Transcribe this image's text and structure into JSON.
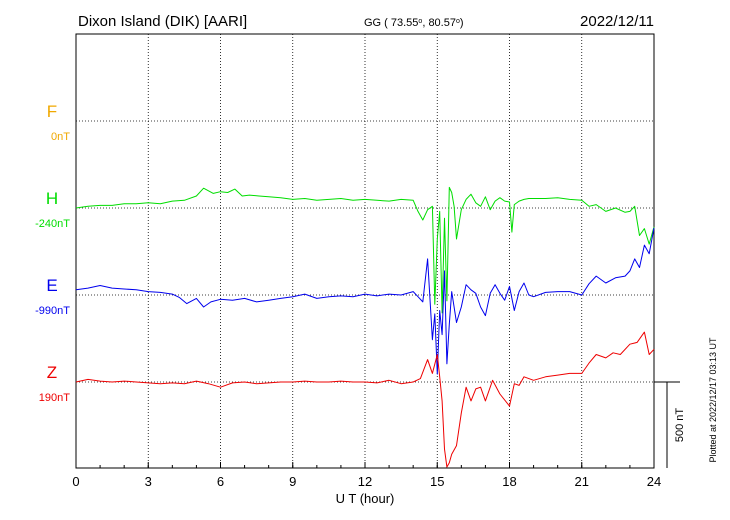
{
  "header": {
    "station": "Dixon Island (DIK)  [AARI]",
    "coords": "GG ( 73.55",
    "coords_mid": ",  80.57",
    "coords_end": ")",
    "date": "2022/12/11"
  },
  "footer": {
    "plotted": "Plotted at 2022/12/17 03:13 UT"
  },
  "chart_data": {
    "type": "line",
    "xlabel": "U T (hour)",
    "xlim": [
      0,
      24
    ],
    "x_ticks": [
      "0",
      "3",
      "6",
      "9",
      "12",
      "15",
      "18",
      "21",
      "24"
    ],
    "scale_label": "500 nT",
    "colors": {
      "F": "#f0a800",
      "H": "#00dd00",
      "E": "#0000ee",
      "Z": "#ee0000"
    },
    "series": [
      {
        "name": "F",
        "baseline_label": "0nT",
        "values": []
      },
      {
        "name": "H",
        "baseline_label": "-240nT",
        "x": [
          0,
          0.5,
          1,
          1.5,
          2,
          2.5,
          3,
          3.5,
          4,
          4.5,
          5,
          5.3,
          5.7,
          6,
          6.3,
          6.6,
          6.9,
          7.2,
          7.6,
          8,
          8.5,
          9,
          9.5,
          10,
          10.5,
          11,
          11.5,
          12,
          12.5,
          13,
          13.5,
          14,
          14.2,
          14.4,
          14.6,
          14.8,
          14.9,
          15.0,
          15.1,
          15.2,
          15.3,
          15.4,
          15.5,
          15.6,
          15.7,
          15.8,
          16,
          16.2,
          16.4,
          16.6,
          16.8,
          17,
          17.2,
          17.4,
          17.6,
          17.8,
          18,
          18.1,
          18.2,
          18.4,
          18.6,
          18.8,
          19,
          19.5,
          20,
          20.5,
          21,
          21.3,
          21.6,
          22,
          22.4,
          22.8,
          23,
          23.2,
          23.4,
          23.6,
          23.8,
          24
        ],
        "values": [
          -240,
          -230,
          -225,
          -225,
          -215,
          -215,
          -210,
          -215,
          -200,
          -195,
          -170,
          -125,
          -155,
          -145,
          -150,
          -130,
          -170,
          -165,
          -170,
          -175,
          -180,
          -190,
          -185,
          -195,
          -190,
          -185,
          -195,
          -190,
          -195,
          -200,
          -190,
          -195,
          -260,
          -310,
          -250,
          -230,
          -800,
          -420,
          -260,
          -850,
          -300,
          -780,
          -120,
          -150,
          -230,
          -420,
          -250,
          -190,
          -160,
          -210,
          -230,
          -175,
          -250,
          -200,
          -180,
          -200,
          -205,
          -380,
          -220,
          -200,
          -190,
          -185,
          -185,
          -185,
          -180,
          -190,
          -195,
          -230,
          -220,
          -260,
          -240,
          -265,
          -260,
          -230,
          -400,
          -360,
          -450,
          -350
        ]
      },
      {
        "name": "E",
        "baseline_label": "-990nT",
        "x": [
          0,
          0.5,
          1,
          1.5,
          2,
          2.5,
          3,
          3.5,
          4,
          4.3,
          4.6,
          5,
          5.3,
          5.6,
          6,
          6.5,
          7,
          7.5,
          8,
          8.5,
          9,
          9.5,
          10,
          10.5,
          11,
          11.5,
          12,
          12.5,
          13,
          13.5,
          14,
          14.2,
          14.4,
          14.6,
          14.8,
          14.9,
          15.0,
          15.1,
          15.2,
          15.3,
          15.4,
          15.5,
          15.6,
          15.8,
          16,
          16.2,
          16.4,
          16.6,
          16.8,
          17,
          17.2,
          17.4,
          17.6,
          17.8,
          18,
          18.2,
          18.4,
          18.6,
          18.8,
          19,
          19.5,
          20,
          20.5,
          21,
          21.3,
          21.6,
          22,
          22.4,
          22.8,
          23,
          23.2,
          23.4,
          23.6,
          23.8,
          24
        ],
        "values": [
          -960,
          -950,
          -935,
          -950,
          -955,
          -960,
          -970,
          -975,
          -985,
          -1005,
          -1040,
          -1010,
          -1060,
          -1030,
          -1015,
          -1020,
          -1010,
          -1030,
          -1020,
          -1010,
          -1000,
          -985,
          -1010,
          -1000,
          -995,
          -1000,
          -985,
          -995,
          -985,
          -990,
          -970,
          -1000,
          -1030,
          -780,
          -1250,
          -1100,
          -1450,
          -1080,
          -1220,
          -850,
          -1390,
          -1160,
          -970,
          -1150,
          -1060,
          -930,
          -960,
          -980,
          -1060,
          -1110,
          -980,
          -930,
          -980,
          -1020,
          -940,
          -1080,
          -970,
          -920,
          -990,
          -1000,
          -975,
          -970,
          -970,
          -990,
          -925,
          -880,
          -920,
          -890,
          -880,
          -850,
          -780,
          -830,
          -700,
          -750,
          -600
        ]
      },
      {
        "name": "Z",
        "baseline_label": "190nT",
        "x": [
          0,
          0.5,
          1,
          1.5,
          2,
          2.5,
          3,
          3.5,
          4,
          4.5,
          5,
          5.5,
          6,
          6.5,
          7,
          7.5,
          8,
          8.5,
          9,
          9.5,
          10,
          10.5,
          11,
          11.5,
          12,
          12.5,
          13,
          13.5,
          14,
          14.3,
          14.6,
          14.8,
          15.0,
          15.1,
          15.2,
          15.3,
          15.4,
          15.5,
          15.6,
          15.8,
          16,
          16.2,
          16.4,
          16.6,
          16.8,
          17,
          17.3,
          17.6,
          18,
          18.2,
          18.4,
          18.6,
          19,
          19.5,
          20,
          20.5,
          21,
          21.3,
          21.6,
          22,
          22.3,
          22.6,
          23,
          23.3,
          23.6,
          23.8,
          24
        ],
        "values": [
          190,
          205,
          195,
          190,
          195,
          190,
          185,
          180,
          185,
          180,
          195,
          180,
          160,
          185,
          190,
          180,
          185,
          190,
          190,
          195,
          190,
          190,
          195,
          190,
          190,
          185,
          200,
          180,
          190,
          210,
          320,
          240,
          350,
          220,
          80,
          -200,
          -430,
          -280,
          -230,
          -180,
          10,
          160,
          80,
          150,
          160,
          80,
          200,
          120,
          50,
          180,
          170,
          220,
          200,
          220,
          230,
          240,
          240,
          300,
          350,
          330,
          360,
          350,
          410,
          420,
          480,
          350,
          380
        ]
      }
    ]
  }
}
